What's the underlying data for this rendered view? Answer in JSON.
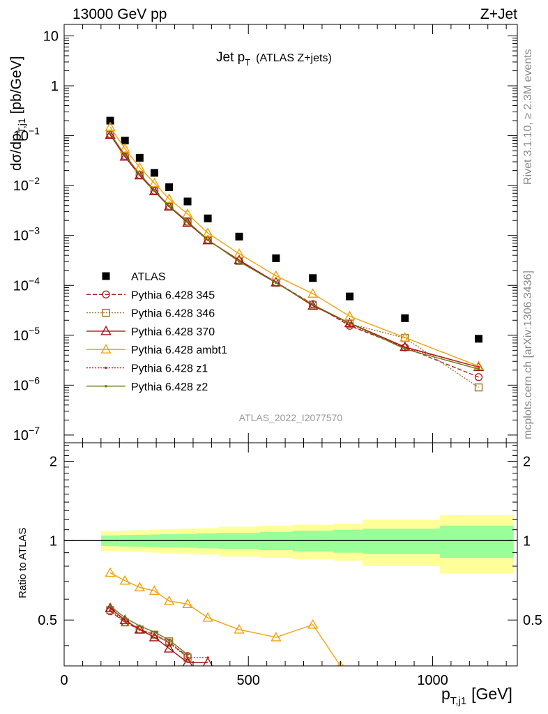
{
  "header": {
    "left": "13000 GeV pp",
    "right": "Z+Jet"
  },
  "side": {
    "rivet": "Rivet 3.1.10, ≥ 2.3M events",
    "mcplots": "mcplots.cern.ch [arXiv:1306.3436]"
  },
  "analysis_id": "ATLAS_2022_I2077570",
  "chart_data": [
    {
      "type": "scatter",
      "panel": "main",
      "title": "Jet p_T (ATLAS Z+jets)",
      "title_main": "Jet p",
      "title_sub": "T",
      "title_extra": "(ATLAS Z+jets)",
      "ylabel": "dσ/dp_T,j1 [pb/GeV]",
      "ylabel_main": "dσ/dp",
      "ylabel_sub": "T,j1",
      "ylabel_unit": "[pb/GeV]",
      "yscale": "log",
      "xlim": [
        0,
        1230
      ],
      "ylim": [
        7e-08,
        17
      ],
      "legend_position": "left-middle",
      "yticks": [
        {
          "v": 1e-07,
          "main": "10",
          "exp": "−7"
        },
        {
          "v": 1e-06,
          "main": "10",
          "exp": "−6"
        },
        {
          "v": 1e-05,
          "main": "10",
          "exp": "−5"
        },
        {
          "v": 0.0001,
          "main": "10",
          "exp": "−4"
        },
        {
          "v": 0.001,
          "main": "10",
          "exp": "−3"
        },
        {
          "v": 0.01,
          "main": "10",
          "exp": "−2"
        },
        {
          "v": 0.1,
          "main": "10",
          "exp": "−1"
        },
        {
          "v": 1,
          "main": "1",
          "exp": ""
        },
        {
          "v": 10,
          "main": "10",
          "exp": ""
        }
      ],
      "x": [
        125,
        165,
        205,
        245,
        285,
        335,
        390,
        475,
        575,
        675,
        775,
        925,
        1125
      ],
      "x_edges": [
        100,
        150,
        180,
        230,
        260,
        310,
        360,
        420,
        530,
        620,
        730,
        810,
        1020,
        1220
      ],
      "series": [
        {
          "name": "ATLAS",
          "color": "#000000",
          "marker": "square",
          "line": "none",
          "values": [
            0.2,
            0.08,
            0.036,
            0.018,
            0.0093,
            0.0048,
            0.0022,
            0.00095,
            0.00035,
            0.00014,
            6e-05,
            2.2e-05,
            8.5e-06
          ]
        },
        {
          "name": "Pythia 6.428 345",
          "color": "#b22222",
          "marker": "circle",
          "line": "dashed",
          "values": [
            0.108,
            0.039,
            0.0164,
            0.0079,
            0.0039,
            0.0019,
            0.00082,
            0.00031,
            0.000115,
            4.2e-05,
            1.55e-05,
            5.7e-06,
            1.45e-06
          ]
        },
        {
          "name": "Pythia 6.428 346",
          "color": "#a0722a",
          "marker": "square-open",
          "line": "dotted",
          "values": [
            0.108,
            0.039,
            0.0164,
            0.0079,
            0.0039,
            0.0019,
            0.00082,
            0.00031,
            0.000113,
            4.1e-05,
            1.7e-05,
            8.8e-06,
            9e-07
          ]
        },
        {
          "name": "Pythia 6.428 370",
          "color": "#a01010",
          "marker": "triangle",
          "line": "solid",
          "values": [
            0.104,
            0.038,
            0.016,
            0.0077,
            0.0038,
            0.0018,
            0.0008,
            0.00032,
            0.000115,
            3.9e-05,
            1.75e-05,
            5.8e-06,
            2.3e-06
          ]
        },
        {
          "name": "Pythia 6.428 ambt1",
          "color": "#f0a30a",
          "marker": "triangle",
          "line": "solid",
          "values": [
            0.148,
            0.055,
            0.023,
            0.0112,
            0.0054,
            0.0027,
            0.00112,
            0.00043,
            0.000155,
            6.8e-05,
            2.4e-05,
            9e-06,
            2.4e-06
          ]
        },
        {
          "name": "Pythia 6.428 z1",
          "color": "#d62020",
          "marker": "dot",
          "line": "dotted",
          "values": [
            0.108,
            0.04,
            0.0164,
            0.0079,
            0.0039,
            0.0019,
            0.00082,
            0.00031,
            0.000115,
            4.1e-05,
            1.62e-05,
            5.6e-06,
            2.3e-06
          ]
        },
        {
          "name": "Pythia 6.428 z2",
          "color": "#6b7a1a",
          "marker": "dot",
          "line": "solid",
          "values": [
            0.11,
            0.041,
            0.017,
            0.0081,
            0.0039,
            0.0019,
            0.00082,
            0.0003,
            0.000112,
            4.1e-05,
            1.75e-05,
            5.3e-06,
            2.1e-06
          ]
        }
      ]
    },
    {
      "type": "line",
      "panel": "ratio",
      "ylabel": "Ratio to ATLAS",
      "xlabel": "p_T,j1 [GeV]",
      "xlabel_main": "p",
      "xlabel_sub": "T,j1",
      "xlabel_unit": "[GeV]",
      "xlim": [
        0,
        1230
      ],
      "ylim": [
        0.335,
        2.35
      ],
      "yscale": "log",
      "reference_line": 1,
      "xticks": [
        0,
        500,
        1000
      ],
      "yticks": [
        0.5,
        1,
        2
      ],
      "band_colors": {
        "inner": "#99ff99",
        "outer": "#ffff99"
      },
      "band_inner": [
        0.045,
        0.05,
        0.052,
        0.055,
        0.058,
        0.06,
        0.065,
        0.07,
        0.08,
        0.09,
        0.1,
        0.11,
        0.14
      ],
      "band_outer": [
        0.085,
        0.09,
        0.095,
        0.1,
        0.105,
        0.11,
        0.115,
        0.13,
        0.14,
        0.15,
        0.16,
        0.2,
        0.25
      ],
      "series": [
        {
          "name": "Pythia 6.428 345",
          "color": "#b22222",
          "marker": "circle",
          "line": "dashed",
          "x": [
            125,
            165,
            205,
            245,
            285,
            335
          ],
          "values": [
            0.54,
            0.49,
            0.46,
            0.44,
            0.41,
            0.365
          ]
        },
        {
          "name": "Pythia 6.428 346",
          "color": "#a0722a",
          "marker": "square-open",
          "line": "dotted",
          "x": [
            125,
            165,
            205,
            245,
            285,
            335
          ],
          "values": [
            0.545,
            0.49,
            0.46,
            0.44,
            0.415,
            0.36
          ]
        },
        {
          "name": "Pythia 6.428 370",
          "color": "#a01010",
          "marker": "triangle",
          "line": "solid",
          "x": [
            125,
            165,
            205,
            245,
            285,
            335,
            390
          ],
          "values": [
            0.555,
            0.5,
            0.46,
            0.43,
            0.39,
            0.345,
            0.345
          ]
        },
        {
          "name": "Pythia 6.428 ambt1",
          "color": "#f0a30a",
          "marker": "triangle",
          "line": "solid",
          "x": [
            125,
            165,
            205,
            245,
            285,
            335,
            390,
            475,
            575,
            675,
            750
          ],
          "values": [
            0.755,
            0.705,
            0.665,
            0.645,
            0.59,
            0.575,
            0.51,
            0.46,
            0.43,
            0.48,
            0.335
          ]
        },
        {
          "name": "Pythia 6.428 z1",
          "color": "#d62020",
          "marker": "dot",
          "line": "dotted",
          "x": [
            125,
            165,
            205,
            245,
            285,
            335,
            390
          ],
          "values": [
            0.545,
            0.495,
            0.46,
            0.44,
            0.41,
            0.36,
            0.36
          ]
        },
        {
          "name": "Pythia 6.428 z2",
          "color": "#6b7a1a",
          "marker": "dot",
          "line": "solid",
          "x": [
            125,
            165,
            205,
            245,
            285,
            335
          ],
          "values": [
            0.565,
            0.51,
            0.475,
            0.45,
            0.42,
            0.37
          ]
        }
      ]
    }
  ]
}
